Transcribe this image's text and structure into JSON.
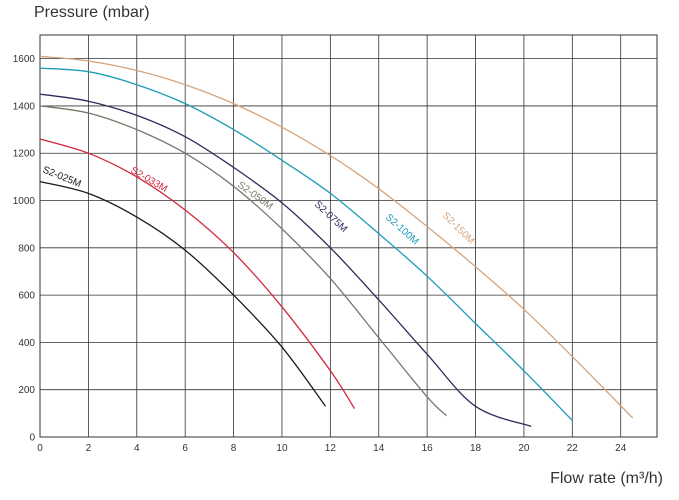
{
  "chart_data": {
    "type": "line",
    "ylabel": "Pressure (mbar)",
    "xlabel": "Flow rate (m³/h)",
    "xlim": [
      0,
      25.5
    ],
    "ylim": [
      0,
      1700
    ],
    "xticks": [
      0,
      2,
      4,
      6,
      8,
      10,
      12,
      14,
      16,
      18,
      20,
      22,
      24
    ],
    "yticks": [
      0,
      200,
      400,
      600,
      800,
      1000,
      1200,
      1400,
      1600
    ],
    "grid": true,
    "series": [
      {
        "name": "S2-025M",
        "color": "#1a1a1a",
        "points": [
          [
            0,
            1080
          ],
          [
            2,
            1030
          ],
          [
            4,
            930
          ],
          [
            6,
            790
          ],
          [
            8,
            600
          ],
          [
            10,
            380
          ],
          [
            11.8,
            130
          ]
        ]
      },
      {
        "name": "S2-033M",
        "color": "#d0263c",
        "points": [
          [
            0,
            1260
          ],
          [
            2,
            1200
          ],
          [
            4,
            1100
          ],
          [
            6,
            960
          ],
          [
            8,
            780
          ],
          [
            10,
            550
          ],
          [
            12,
            280
          ],
          [
            13,
            120
          ]
        ]
      },
      {
        "name": "S2-050M",
        "color": "#77776a",
        "points": [
          [
            0,
            1400
          ],
          [
            2,
            1370
          ],
          [
            4,
            1300
          ],
          [
            6,
            1200
          ],
          [
            8,
            1060
          ],
          [
            10,
            880
          ],
          [
            12,
            670
          ],
          [
            14,
            420
          ],
          [
            16,
            170
          ],
          [
            16.8,
            90
          ]
        ]
      },
      {
        "name": "S2-075M",
        "color": "#2e2b5a",
        "points": [
          [
            0,
            1450
          ],
          [
            2,
            1420
          ],
          [
            4,
            1360
          ],
          [
            6,
            1270
          ],
          [
            8,
            1140
          ],
          [
            10,
            990
          ],
          [
            12,
            800
          ],
          [
            14,
            580
          ],
          [
            16,
            350
          ],
          [
            18,
            130
          ],
          [
            20.3,
            45
          ]
        ]
      },
      {
        "name": "S2-100M",
        "color": "#1a9bb8",
        "points": [
          [
            0,
            1560
          ],
          [
            2,
            1545
          ],
          [
            4,
            1490
          ],
          [
            6,
            1410
          ],
          [
            8,
            1300
          ],
          [
            10,
            1170
          ],
          [
            12,
            1030
          ],
          [
            14,
            860
          ],
          [
            16,
            680
          ],
          [
            18,
            480
          ],
          [
            20,
            280
          ],
          [
            22,
            70
          ]
        ]
      },
      {
        "name": "S2-150M",
        "color": "#d6a47c",
        "points": [
          [
            0,
            1610
          ],
          [
            2,
            1590
          ],
          [
            4,
            1550
          ],
          [
            6,
            1490
          ],
          [
            8,
            1410
          ],
          [
            10,
            1310
          ],
          [
            12,
            1190
          ],
          [
            14,
            1050
          ],
          [
            16,
            890
          ],
          [
            18,
            720
          ],
          [
            20,
            540
          ],
          [
            22,
            340
          ],
          [
            24.5,
            80
          ]
        ]
      }
    ]
  }
}
